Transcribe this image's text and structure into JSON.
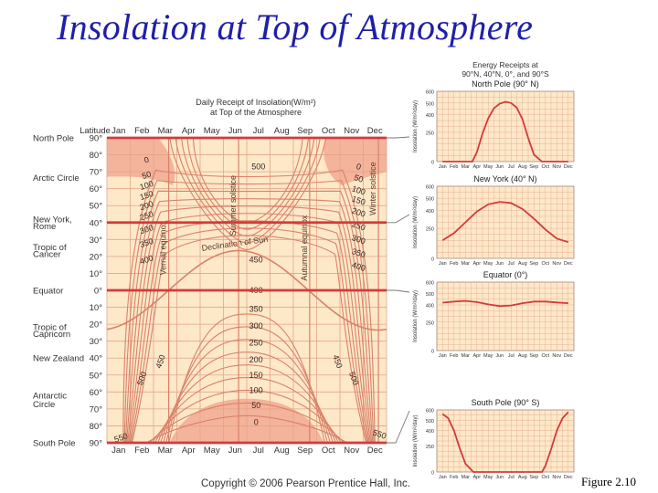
{
  "slide": {
    "title": "Insolation at Top of Atmosphere",
    "figure_label": "Figure 2.10",
    "copyright": "Copyright © 2006 Pearson Prentice Hall, Inc."
  },
  "colors": {
    "title": "#1f1fa8",
    "panel_bg": "#fde8c8",
    "grid": "#e3a58a",
    "contour": "#d9826a",
    "highlight": "#f4b39b",
    "accent_red": "#d43a3a"
  },
  "chart_data": [
    {
      "type": "heatmap",
      "title": "Daily Receipt of Insolation(W/m²)",
      "subtitle": "at Top of the Atmosphere",
      "xlabel": "",
      "ylabel": "Latitude",
      "months": [
        "Jan",
        "Feb",
        "Mar",
        "Apr",
        "May",
        "Jun",
        "Jul",
        "Aug",
        "Sep",
        "Oct",
        "Nov",
        "Dec"
      ],
      "latitude_ticks": [
        "90°",
        "80°",
        "70°",
        "60°",
        "50°",
        "40°",
        "30°",
        "20°",
        "10°",
        "0°",
        "10°",
        "20°",
        "30°",
        "40°",
        "50°",
        "60°",
        "70°",
        "80°",
        "90°"
      ],
      "region_labels": [
        {
          "text": "North Pole",
          "lat": 90
        },
        {
          "text": "Arctic Circle",
          "lat": 66.5
        },
        {
          "text": "New York,",
          "lat": 42
        },
        {
          "text": "Rome",
          "lat": 38
        },
        {
          "text": "Tropic of",
          "lat": 25.5
        },
        {
          "text": "Cancer",
          "lat": 21.5
        },
        {
          "text": "Equator",
          "lat": 0
        },
        {
          "text": "Tropic of",
          "lat": -21.5
        },
        {
          "text": "Capricorn",
          "lat": -25.5
        },
        {
          "text": "New Zealand",
          "lat": -40
        },
        {
          "text": "Antarctic",
          "lat": -62
        },
        {
          "text": "Circle",
          "lat": -67
        },
        {
          "text": "South Pole",
          "lat": -90
        }
      ],
      "highlight_latitudes": [
        40,
        0
      ],
      "event_lines": [
        {
          "label": "Vernal equinox",
          "month": 2.65
        },
        {
          "label": "Summer solstice",
          "month": 5.65
        },
        {
          "label": "Autumnal equinox",
          "month": 8.7
        },
        {
          "label": "Winter solstice",
          "month": 11.65
        }
      ],
      "declination_label": "Declination of Sun",
      "contour_labels": [
        {
          "text": "0",
          "month": 1.2,
          "lat": 77
        },
        {
          "text": "50",
          "month": 1.2,
          "lat": 68
        },
        {
          "text": "100",
          "month": 1.2,
          "lat": 62
        },
        {
          "text": "150",
          "month": 1.2,
          "lat": 56
        },
        {
          "text": "200",
          "month": 1.2,
          "lat": 50
        },
        {
          "text": "250",
          "month": 1.2,
          "lat": 44
        },
        {
          "text": "300",
          "month": 1.2,
          "lat": 36
        },
        {
          "text": "350",
          "month": 1.2,
          "lat": 28
        },
        {
          "text": "400",
          "month": 1.2,
          "lat": 18
        },
        {
          "text": "0",
          "month": 10.3,
          "lat": 73
        },
        {
          "text": "50",
          "month": 10.3,
          "lat": 66
        },
        {
          "text": "100",
          "month": 10.3,
          "lat": 59
        },
        {
          "text": "150",
          "month": 10.3,
          "lat": 53
        },
        {
          "text": "200",
          "month": 10.3,
          "lat": 46
        },
        {
          "text": "250",
          "month": 10.3,
          "lat": 38
        },
        {
          "text": "300",
          "month": 10.3,
          "lat": 30
        },
        {
          "text": "350",
          "month": 10.3,
          "lat": 22
        },
        {
          "text": "400",
          "month": 10.3,
          "lat": 14
        },
        {
          "text": "450",
          "month": 5.9,
          "lat": 18
        },
        {
          "text": "400",
          "month": 5.9,
          "lat": 0
        },
        {
          "text": "350",
          "month": 5.9,
          "lat": -11
        },
        {
          "text": "300",
          "month": 5.9,
          "lat": -21
        },
        {
          "text": "250",
          "month": 5.9,
          "lat": -31
        },
        {
          "text": "200",
          "month": 5.9,
          "lat": -41
        },
        {
          "text": "150",
          "month": 5.9,
          "lat": -50
        },
        {
          "text": "100",
          "month": 5.9,
          "lat": -59
        },
        {
          "text": "50",
          "month": 5.9,
          "lat": -68
        },
        {
          "text": "0",
          "month": 5.9,
          "lat": -78
        },
        {
          "text": "500",
          "month": 6.0,
          "lat": 73
        },
        {
          "text": "450",
          "month": 1.8,
          "lat": -42
        },
        {
          "text": "500",
          "month": 1.0,
          "lat": -52
        },
        {
          "text": "450",
          "month": 9.4,
          "lat": -42
        },
        {
          "text": "500",
          "month": 10.1,
          "lat": -52
        },
        {
          "text": "550",
          "month": 0.1,
          "lat": -87
        },
        {
          "text": "550",
          "month": 11.2,
          "lat": -85
        }
      ]
    },
    {
      "type": "line",
      "title": "North Pole (90° N)",
      "ylabel": "Insolation (W/m²/day)",
      "categories": [
        "Jan",
        "Feb",
        "Mar",
        "Apr",
        "May",
        "Jun",
        "Jul",
        "Aug",
        "Sep",
        "Oct",
        "Nov",
        "Dec"
      ],
      "yticks": [
        0,
        250,
        400,
        500,
        600
      ],
      "ylim": [
        0,
        600
      ],
      "x": [
        0,
        1,
        2,
        2.6,
        3,
        3.5,
        4,
        4.5,
        5,
        5.5,
        6,
        6.5,
        7,
        7.5,
        8,
        8.7,
        9,
        10,
        11
      ],
      "values": [
        0,
        0,
        0,
        0,
        80,
        240,
        370,
        455,
        495,
        510,
        500,
        460,
        360,
        200,
        60,
        0,
        0,
        0,
        0
      ]
    },
    {
      "type": "line",
      "title": "New York (40° N)",
      "ylabel": "Insolation (W/m²/day)",
      "categories": [
        "Jan",
        "Feb",
        "Mar",
        "Apr",
        "May",
        "Jun",
        "Jul",
        "Aug",
        "Sep",
        "Oct",
        "Nov",
        "Dec"
      ],
      "yticks": [
        0,
        250,
        400,
        500,
        600
      ],
      "ylim": [
        0,
        600
      ],
      "x": [
        0,
        1,
        2,
        3,
        4,
        5,
        6,
        7,
        8,
        9,
        10,
        11
      ],
      "values": [
        150,
        210,
        300,
        390,
        450,
        470,
        460,
        410,
        330,
        240,
        165,
        135
      ]
    },
    {
      "type": "line",
      "title": "Equator (0°)",
      "ylabel": "Insolation (W/m²/day)",
      "categories": [
        "Jan",
        "Feb",
        "Mar",
        "Apr",
        "May",
        "Jun",
        "Jul",
        "Aug",
        "Sep",
        "Oct",
        "Nov",
        "Dec"
      ],
      "yticks": [
        0,
        250,
        400,
        500,
        600
      ],
      "ylim": [
        0,
        600
      ],
      "x": [
        0,
        1,
        2,
        3,
        4,
        5,
        6,
        7,
        8,
        9,
        10,
        11
      ],
      "values": [
        420,
        430,
        435,
        425,
        405,
        390,
        395,
        415,
        430,
        430,
        422,
        415
      ]
    },
    {
      "type": "line",
      "title": "South Pole (90° S)",
      "ylabel": "Insolation (W/m²/day)",
      "categories": [
        "Jan",
        "Feb",
        "Mar",
        "Apr",
        "May",
        "Jun",
        "Jul",
        "Aug",
        "Sep",
        "Oct",
        "Nov",
        "Dec"
      ],
      "yticks": [
        0,
        250,
        400,
        500,
        600
      ],
      "ylim": [
        0,
        600
      ],
      "x": [
        0,
        0.5,
        1,
        1.5,
        2,
        2.7,
        3,
        4,
        5,
        6,
        7,
        8,
        8.7,
        9,
        9.5,
        10,
        10.5,
        11
      ],
      "values": [
        560,
        520,
        400,
        230,
        80,
        0,
        0,
        0,
        0,
        0,
        0,
        0,
        0,
        60,
        220,
        400,
        520,
        580
      ]
    }
  ],
  "panels_header": {
    "line1": "Energy Receipts at",
    "line2": "90°N, 40°N, 0°, and 90°S"
  }
}
